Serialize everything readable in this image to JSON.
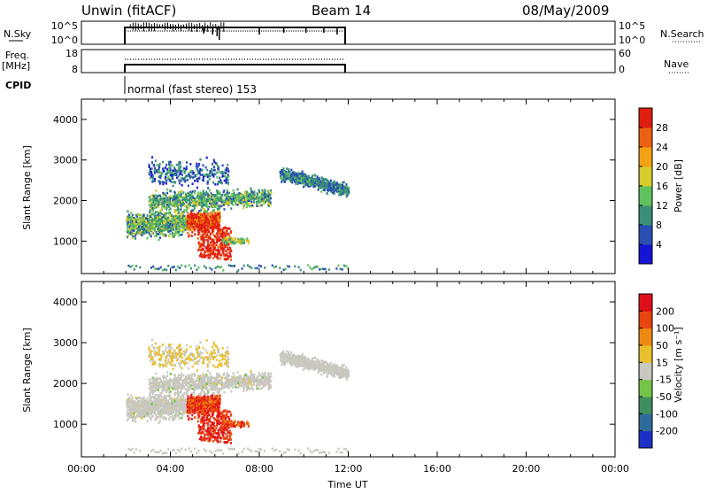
{
  "header": {
    "station": "Unwin (fitACF)",
    "beam": "Beam 14",
    "date": "08/May/2009"
  },
  "nsky_panel": {
    "left_label": "N.Sky",
    "right_label": "N.Search",
    "left_ticks": [
      "10^5",
      "10^0"
    ],
    "right_ticks": [
      "10^5",
      "10^0"
    ]
  },
  "freq_panel": {
    "left_label_1": "Freq.",
    "left_label_2": "[MHz]",
    "right_label": "Nave",
    "left_ticks": [
      "18",
      "8"
    ],
    "right_ticks": [
      "60",
      "0"
    ]
  },
  "cpid": {
    "label": "CPID",
    "text": "normal (fast stereo) 153"
  },
  "chart_data": [
    {
      "type": "heatmap",
      "name": "power",
      "ylabel": "Slant Range [km]",
      "y_ticks": [
        "4000",
        "3000",
        "2000",
        "1000"
      ],
      "ylim": [
        200,
        4500
      ],
      "xlim": [
        0,
        24
      ],
      "colorbar_label": "Power [dB]",
      "colorbar_ticks": [
        "28",
        "24",
        "20",
        "16",
        "12",
        "8",
        "4"
      ],
      "colorbar_colors": [
        "#1414d7",
        "#2a4fb5",
        "#3a8f78",
        "#5fc25f",
        "#d8cc2d",
        "#f2a213",
        "#ec6011",
        "#e01e10"
      ]
    },
    {
      "type": "heatmap",
      "name": "velocity",
      "ylabel": "Slant Range [km]",
      "y_ticks": [
        "4000",
        "3000",
        "2000",
        "1000"
      ],
      "ylim": [
        200,
        4500
      ],
      "xlim": [
        0,
        24
      ],
      "colorbar_label": "Velocity [m s⁻¹]",
      "colorbar_ticks": [
        "200",
        "100",
        "50",
        "15",
        "-15",
        "-50",
        "-100",
        "-200"
      ],
      "colorbar_colors": [
        "#1c30c8",
        "#2e6c9b",
        "#3f8e5f",
        "#74c449",
        "#c8c8c0",
        "#e8c02c",
        "#ee8a13",
        "#e9460f",
        "#e0101a"
      ],
      "xlabel": "Time UT",
      "x_ticks": [
        "00:00",
        "04:00",
        "08:00",
        "12:00",
        "16:00",
        "20:00",
        "00:00"
      ]
    }
  ]
}
